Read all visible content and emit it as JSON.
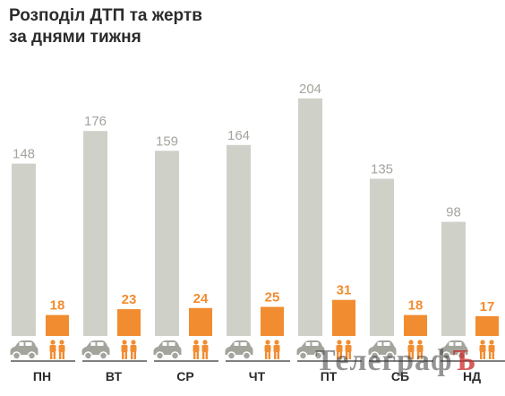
{
  "header": {
    "title_line1": "Розподіл ДТП та жертв",
    "title_line2": "за днями тижня"
  },
  "watermark": {
    "text_main": "Телеграф",
    "text_accent": "Ъ"
  },
  "colors": {
    "accidents": "#cfd1c9",
    "victims": "#f28c30",
    "accidents_label": "#a3a59d",
    "icon": "#a3a59d",
    "axis": "#333333"
  },
  "icons": {
    "accidents": "car-icon",
    "victims": "people-icon"
  },
  "chart_data": {
    "type": "bar",
    "title": "Розподіл ДТП та жертв за днями тижня",
    "categories": [
      "ПН",
      "ВТ",
      "СР",
      "ЧТ",
      "ПТ",
      "СБ",
      "НД"
    ],
    "series": [
      {
        "values": [
          148,
          176,
          159,
          164,
          204,
          135,
          98
        ]
      },
      {
        "values": [
          18,
          23,
          24,
          25,
          31,
          18,
          17
        ]
      }
    ],
    "ylim": [
      0,
      210
    ],
    "grid": false
  }
}
